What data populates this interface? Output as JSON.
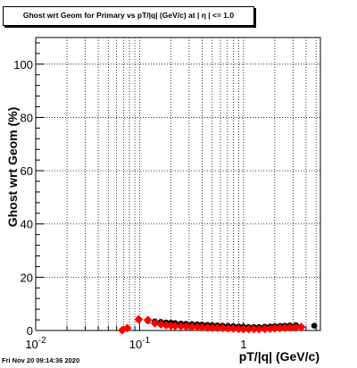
{
  "chart_data": {
    "type": "scatter",
    "title": "Ghost wrt Geom for Primary vs pT/|q| (GeV/c) at |  η | <= 1.0",
    "xlabel": "pT/|q| (GeV/c)",
    "ylabel": "Ghost wrt Geom (%)",
    "x_scale": "log",
    "xlim": [
      0.01,
      5.5
    ],
    "ylim": [
      0,
      110
    ],
    "grid": true,
    "x_ticks": [
      {
        "value": 0.01,
        "base": "10",
        "exp": "-2"
      },
      {
        "value": 0.1,
        "base": "10",
        "exp": "-1"
      },
      {
        "value": 1,
        "base": "1",
        "exp": ""
      }
    ],
    "y_ticks": [
      0,
      20,
      40,
      60,
      80,
      100
    ],
    "series": [
      {
        "color": "#000000",
        "marker": "circle",
        "points": [
          [
            0.098,
            4.0
          ],
          [
            0.12,
            3.6
          ],
          [
            0.14,
            3.4
          ],
          [
            0.16,
            3.2
          ],
          [
            0.18,
            3.0
          ],
          [
            0.2,
            2.9
          ],
          [
            0.22,
            2.8
          ],
          [
            0.25,
            2.6
          ],
          [
            0.28,
            2.5
          ],
          [
            0.32,
            2.4
          ],
          [
            0.36,
            2.3
          ],
          [
            0.4,
            2.2
          ],
          [
            0.45,
            2.1
          ],
          [
            0.5,
            2.0
          ],
          [
            0.56,
            1.9
          ],
          [
            0.63,
            1.8
          ],
          [
            0.71,
            1.7
          ],
          [
            0.8,
            1.6
          ],
          [
            0.9,
            1.5
          ],
          [
            1.0,
            1.4
          ],
          [
            1.12,
            1.3
          ],
          [
            1.26,
            1.3
          ],
          [
            1.41,
            1.3
          ],
          [
            1.6,
            1.4
          ],
          [
            1.8,
            1.5
          ],
          [
            2.0,
            1.6
          ],
          [
            2.25,
            1.7
          ],
          [
            2.5,
            1.8
          ],
          [
            2.8,
            1.9
          ],
          [
            3.2,
            2.0
          ],
          [
            4.8,
            1.8
          ]
        ]
      },
      {
        "color": "#ff0000",
        "marker": "diamond",
        "points": [
          [
            0.068,
            0.1
          ],
          [
            0.076,
            0.9
          ],
          [
            0.098,
            4.2
          ],
          [
            0.12,
            3.9
          ],
          [
            0.14,
            2.7
          ],
          [
            0.16,
            2.3
          ],
          [
            0.18,
            2.0
          ],
          [
            0.2,
            1.8
          ],
          [
            0.22,
            1.7
          ],
          [
            0.25,
            1.6
          ],
          [
            0.28,
            1.5
          ],
          [
            0.32,
            1.4
          ],
          [
            0.36,
            1.3
          ],
          [
            0.4,
            1.2
          ],
          [
            0.45,
            1.1
          ],
          [
            0.5,
            1.0
          ],
          [
            0.56,
            1.0
          ],
          [
            0.63,
            0.9
          ],
          [
            0.71,
            0.8
          ],
          [
            0.8,
            0.7
          ],
          [
            0.9,
            0.6
          ],
          [
            1.0,
            0.5
          ],
          [
            1.12,
            0.5
          ],
          [
            1.26,
            0.5
          ],
          [
            1.41,
            0.5
          ],
          [
            1.6,
            0.6
          ],
          [
            1.8,
            0.7
          ],
          [
            2.0,
            0.8
          ],
          [
            2.25,
            0.9
          ],
          [
            2.5,
            1.0
          ],
          [
            2.8,
            1.1
          ],
          [
            3.2,
            1.1
          ],
          [
            3.6,
            1.3
          ]
        ]
      }
    ]
  },
  "footer": {
    "timestamp": "Fri Nov 20 09:14:36 2020"
  }
}
